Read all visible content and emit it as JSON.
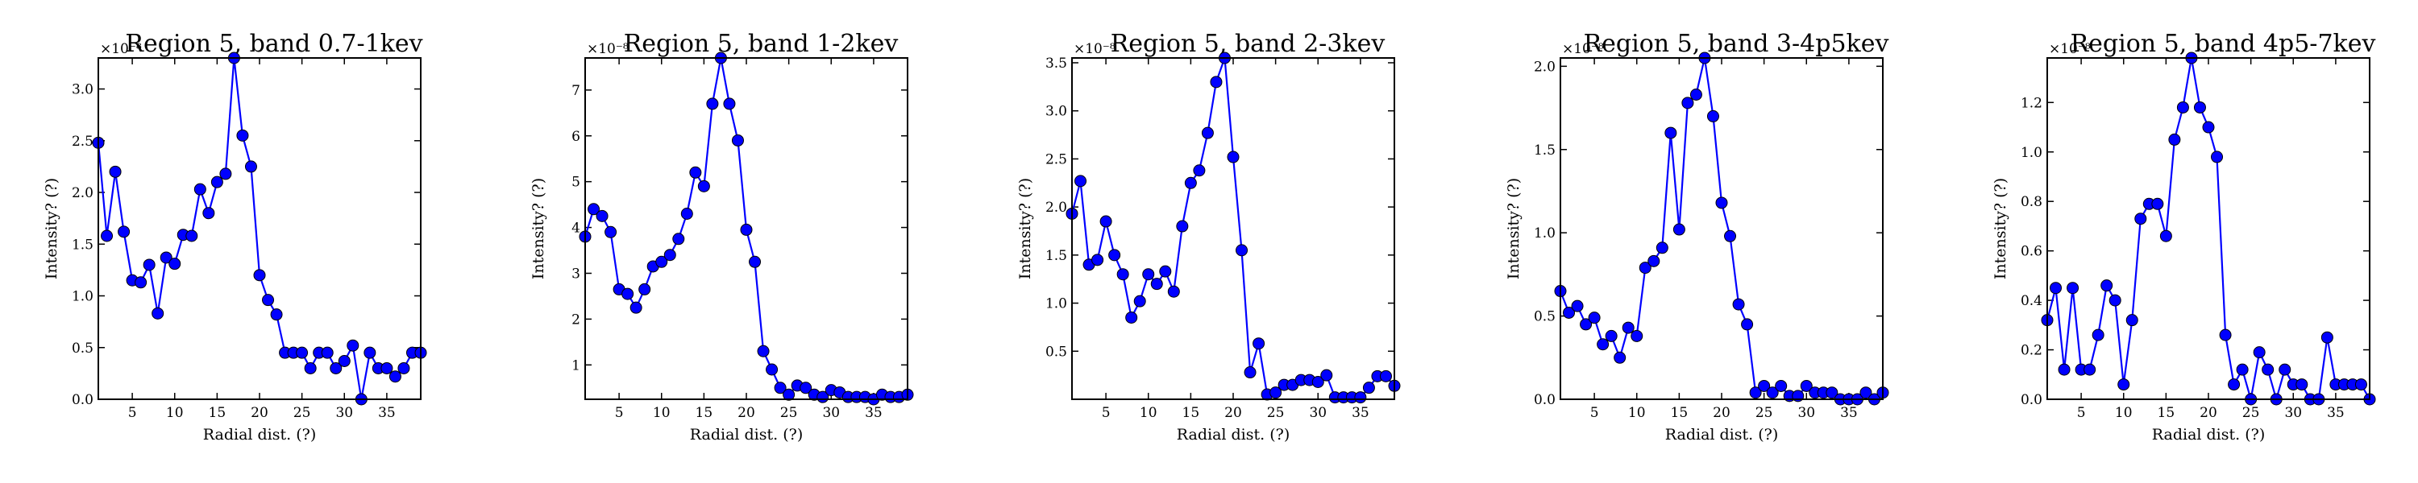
{
  "colors": {
    "series": "#0000ff",
    "marker_edge": "#000000",
    "axes": "#000000"
  },
  "chart_data": [
    {
      "type": "line",
      "title": "Region 5, band 0.7-1kev",
      "xlabel": "Radial dist. (?)",
      "ylabel": "Intensity? (?)",
      "multiplier": "×10⁻⁸",
      "xlim": [
        1,
        39
      ],
      "ylim": [
        0.0,
        3.3
      ],
      "xticks": [
        5,
        10,
        15,
        20,
        25,
        30,
        35
      ],
      "yticks": [
        0.0,
        0.5,
        1.0,
        1.5,
        2.0,
        2.5,
        3.0
      ],
      "ytick_labels": [
        "0.0",
        "0.5",
        "1.0",
        "1.5",
        "2.0",
        "2.5",
        "3.0"
      ],
      "x": [
        1,
        2,
        3,
        4,
        5,
        6,
        7,
        8,
        9,
        10,
        11,
        12,
        13,
        14,
        15,
        16,
        17,
        18,
        19,
        20,
        21,
        22,
        23,
        24,
        25,
        26,
        27,
        28,
        29,
        30,
        31,
        32,
        33,
        34,
        35,
        36,
        37,
        38,
        39
      ],
      "y": [
        2.48,
        1.58,
        2.2,
        1.62,
        1.15,
        1.13,
        1.3,
        0.83,
        1.37,
        1.31,
        1.59,
        1.58,
        2.03,
        1.8,
        2.1,
        2.18,
        3.3,
        2.55,
        2.25,
        1.2,
        0.96,
        0.82,
        0.45,
        0.45,
        0.45,
        0.3,
        0.45,
        0.45,
        0.3,
        0.37,
        0.52,
        0.0,
        0.45,
        0.3,
        0.3,
        0.22,
        0.3,
        0.45,
        0.45
      ],
      "grid": false,
      "legend": "none"
    },
    {
      "type": "line",
      "title": "Region 5, band 1-2kev",
      "xlabel": "Radial dist. (?)",
      "ylabel": "Intensity? (?)",
      "multiplier": "×10⁻⁸",
      "xlim": [
        1,
        39
      ],
      "ylim": [
        0.25,
        7.7
      ],
      "xticks": [
        5,
        10,
        15,
        20,
        25,
        30,
        35
      ],
      "yticks": [
        1,
        2,
        3,
        4,
        5,
        6,
        7
      ],
      "ytick_labels": [
        "1",
        "2",
        "3",
        "4",
        "5",
        "6",
        "7"
      ],
      "x": [
        1,
        2,
        3,
        4,
        5,
        6,
        7,
        8,
        9,
        10,
        11,
        12,
        13,
        14,
        15,
        16,
        17,
        18,
        19,
        20,
        21,
        22,
        23,
        24,
        25,
        26,
        27,
        28,
        29,
        30,
        31,
        32,
        33,
        34,
        35,
        36,
        37,
        38,
        39
      ],
      "y": [
        3.8,
        4.4,
        4.25,
        3.9,
        2.65,
        2.55,
        2.25,
        2.65,
        3.15,
        3.25,
        3.4,
        3.75,
        4.3,
        5.2,
        4.9,
        6.7,
        7.7,
        6.7,
        5.9,
        3.95,
        3.25,
        1.3,
        0.9,
        0.5,
        0.35,
        0.55,
        0.5,
        0.35,
        0.3,
        0.45,
        0.4,
        0.3,
        0.3,
        0.3,
        0.25,
        0.35,
        0.3,
        0.3,
        0.35
      ],
      "grid": false,
      "legend": "none"
    },
    {
      "type": "line",
      "title": "Region 5, band 2-3kev",
      "xlabel": "Radial dist. (?)",
      "ylabel": "Intensity? (?)",
      "multiplier": "×10⁻⁸",
      "xlim": [
        1,
        39
      ],
      "ylim": [
        0.0,
        3.55
      ],
      "xticks": [
        5,
        10,
        15,
        20,
        25,
        30,
        35
      ],
      "yticks": [
        0.5,
        1.0,
        1.5,
        2.0,
        2.5,
        3.0,
        3.5
      ],
      "ytick_labels": [
        "0.5",
        "1.0",
        "1.5",
        "2.0",
        "2.5",
        "3.0",
        "3.5"
      ],
      "x": [
        1,
        2,
        3,
        4,
        5,
        6,
        7,
        8,
        9,
        10,
        11,
        12,
        13,
        14,
        15,
        16,
        17,
        18,
        19,
        20,
        21,
        22,
        23,
        24,
        25,
        26,
        27,
        28,
        29,
        30,
        31,
        32,
        33,
        34,
        35,
        36,
        37,
        38,
        39
      ],
      "y": [
        1.93,
        2.27,
        1.4,
        1.45,
        1.85,
        1.5,
        1.3,
        0.85,
        1.02,
        1.3,
        1.2,
        1.33,
        1.12,
        1.8,
        2.25,
        2.38,
        2.77,
        3.3,
        3.55,
        2.52,
        1.55,
        0.28,
        0.58,
        0.05,
        0.07,
        0.15,
        0.15,
        0.2,
        0.2,
        0.18,
        0.25,
        0.02,
        0.02,
        0.02,
        0.02,
        0.12,
        0.24,
        0.24,
        0.14
      ],
      "grid": false,
      "legend": "none"
    },
    {
      "type": "line",
      "title": "Region 5, band 3-4p5kev",
      "xlabel": "Radial dist. (?)",
      "ylabel": "Intensity? (?)",
      "multiplier": "×10⁻⁸",
      "xlim": [
        1,
        39
      ],
      "ylim": [
        0.0,
        2.05
      ],
      "xticks": [
        5,
        10,
        15,
        20,
        25,
        30,
        35
      ],
      "yticks": [
        0.0,
        0.5,
        1.0,
        1.5,
        2.0
      ],
      "ytick_labels": [
        "0.0",
        "0.5",
        "1.0",
        "1.5",
        "2.0"
      ],
      "x": [
        1,
        2,
        3,
        4,
        5,
        6,
        7,
        8,
        9,
        10,
        11,
        12,
        13,
        14,
        15,
        16,
        17,
        18,
        19,
        20,
        21,
        22,
        23,
        24,
        25,
        26,
        27,
        28,
        29,
        30,
        31,
        32,
        33,
        34,
        35,
        36,
        37,
        38,
        39
      ],
      "y": [
        0.65,
        0.52,
        0.56,
        0.45,
        0.49,
        0.33,
        0.38,
        0.25,
        0.43,
        0.38,
        0.79,
        0.83,
        0.91,
        1.6,
        1.02,
        1.78,
        1.83,
        2.05,
        1.7,
        1.18,
        0.98,
        0.57,
        0.45,
        0.04,
        0.08,
        0.04,
        0.08,
        0.02,
        0.02,
        0.08,
        0.04,
        0.04,
        0.04,
        0.0,
        0.0,
        0.0,
        0.04,
        0.0,
        0.04
      ],
      "grid": false,
      "legend": "none"
    },
    {
      "type": "line",
      "title": "Region 5, band 4p5-7kev",
      "xlabel": "Radial dist. (?)",
      "ylabel": "Intensity? (?)",
      "multiplier": "×10⁻⁸",
      "xlim": [
        1,
        39
      ],
      "ylim": [
        0.0,
        1.38
      ],
      "xticks": [
        5,
        10,
        15,
        20,
        25,
        30,
        35
      ],
      "yticks": [
        0.0,
        0.2,
        0.4,
        0.6,
        0.8,
        1.0,
        1.2
      ],
      "ytick_labels": [
        "0.0",
        "0.2",
        "0.4",
        "0.6",
        "0.8",
        "1.0",
        "1.2"
      ],
      "x": [
        1,
        2,
        3,
        4,
        5,
        6,
        7,
        8,
        9,
        10,
        11,
        12,
        13,
        14,
        15,
        16,
        17,
        18,
        19,
        20,
        21,
        22,
        23,
        24,
        25,
        26,
        27,
        28,
        29,
        30,
        31,
        32,
        33,
        34,
        35,
        36,
        37,
        38,
        39
      ],
      "y": [
        0.32,
        0.45,
        0.12,
        0.45,
        0.12,
        0.12,
        0.26,
        0.46,
        0.4,
        0.06,
        0.32,
        0.73,
        0.79,
        0.79,
        0.66,
        1.05,
        1.18,
        1.38,
        1.18,
        1.1,
        0.98,
        0.26,
        0.06,
        0.12,
        0.0,
        0.19,
        0.12,
        0.0,
        0.12,
        0.06,
        0.06,
        0.0,
        0.0,
        0.25,
        0.06,
        0.06,
        0.06,
        0.06,
        0.0
      ],
      "grid": false,
      "legend": "none"
    }
  ]
}
